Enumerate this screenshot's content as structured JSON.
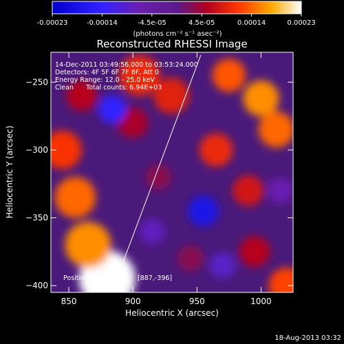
{
  "chart_data": {
    "type": "heatmap",
    "title": "Reconstructed RHESSI Image",
    "xlabel": "Heliocentric X (arcsec)",
    "ylabel": "Heliocentric Y (arcsec)",
    "xlim": [
      836,
      1025
    ],
    "ylim": [
      -405,
      -228
    ],
    "x_ticks": [
      850,
      900,
      950,
      1000
    ],
    "y_ticks": [
      -250,
      -300,
      -350,
      -400
    ],
    "colorbar": {
      "ticks": [
        "-0.00023",
        "-0.00014",
        "-4.5e-05",
        "4.5e-05",
        "0.00014",
        "0.00023"
      ],
      "min": -0.00023,
      "max": 0.00023,
      "unit_label": "(photons cm⁻² s⁻¹ asec⁻²)"
    },
    "annotations": [
      "14-Dec-2011 03:49:56.000 to 03:53:24.000",
      "Detectors: 4F 5F 6F 7F 8F, Att 0",
      "Energy Range: 12.0 - 25.0 keV",
      "Clean",
      "Total counts: 6.94E+03"
    ],
    "position_label": "Position of",
    "position_value": "[887,-396]",
    "limb_line": {
      "x": [
        887,
        953
      ],
      "y": [
        -396,
        -230
      ]
    },
    "blobs": [
      {
        "x": 880,
        "y": -395,
        "r": 22,
        "v": 0.00023
      },
      {
        "x": 865,
        "y": -370,
        "r": 18,
        "v": 0.00016
      },
      {
        "x": 855,
        "y": -335,
        "r": 16,
        "v": 0.00014
      },
      {
        "x": 845,
        "y": -300,
        "r": 15,
        "v": 0.00011
      },
      {
        "x": 905,
        "y": -245,
        "r": 16,
        "v": 0.0001
      },
      {
        "x": 930,
        "y": -260,
        "r": 14,
        "v": 9e-05
      },
      {
        "x": 975,
        "y": -245,
        "r": 13,
        "v": 0.00013
      },
      {
        "x": 1000,
        "y": -262,
        "r": 14,
        "v": 0.00016
      },
      {
        "x": 1012,
        "y": -285,
        "r": 14,
        "v": 0.00014
      },
      {
        "x": 965,
        "y": -300,
        "r": 13,
        "v": 0.0001
      },
      {
        "x": 990,
        "y": -330,
        "r": 12,
        "v": 8e-05
      },
      {
        "x": 1020,
        "y": -400,
        "r": 14,
        "v": 0.00012
      },
      {
        "x": 995,
        "y": -375,
        "r": 12,
        "v": 6e-05
      },
      {
        "x": 900,
        "y": -280,
        "r": 12,
        "v": 5e-05
      },
      {
        "x": 860,
        "y": -260,
        "r": 12,
        "v": 6e-05
      },
      {
        "x": 920,
        "y": -320,
        "r": 10,
        "v": 3e-05
      },
      {
        "x": 945,
        "y": -380,
        "r": 10,
        "v": 3e-05
      },
      {
        "x": 884,
        "y": -270,
        "r": 11,
        "v": -0.00014
      },
      {
        "x": 955,
        "y": -345,
        "r": 12,
        "v": -0.00018
      },
      {
        "x": 915,
        "y": -360,
        "r": 10,
        "v": -8e-05
      },
      {
        "x": 970,
        "y": -385,
        "r": 10,
        "v": -9e-05
      },
      {
        "x": 1015,
        "y": -330,
        "r": 10,
        "v": -7e-05
      }
    ]
  },
  "footer": {
    "timestamp": "18-Aug-2013 03:32"
  }
}
